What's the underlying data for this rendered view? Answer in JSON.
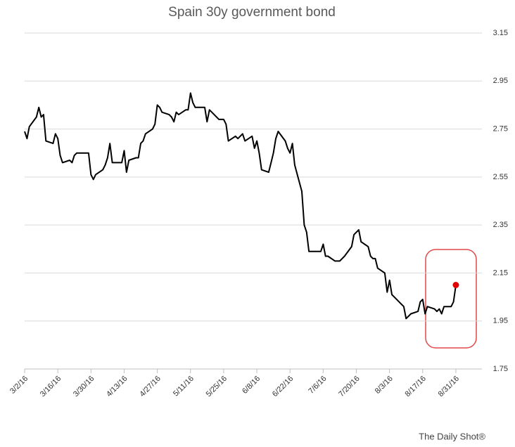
{
  "chart_data": {
    "type": "line",
    "title": "Spain 30y government bond",
    "source": "The Daily Shot®",
    "x": [
      "3/2/16",
      "3/3/16",
      "3/4/16",
      "3/7/16",
      "3/8/16",
      "3/9/16",
      "3/10/16",
      "3/11/16",
      "3/14/16",
      "3/15/16",
      "3/16/16",
      "3/17/16",
      "3/18/16",
      "3/21/16",
      "3/22/16",
      "3/23/16",
      "3/24/16",
      "3/29/16",
      "3/30/16",
      "3/31/16",
      "4/1/16",
      "4/4/16",
      "4/5/16",
      "4/6/16",
      "4/7/16",
      "4/8/16",
      "4/11/16",
      "4/12/16",
      "4/13/16",
      "4/14/16",
      "4/15/16",
      "4/18/16",
      "4/19/16",
      "4/20/16",
      "4/21/16",
      "4/22/16",
      "4/25/16",
      "4/26/16",
      "4/27/16",
      "4/28/16",
      "4/29/16",
      "5/2/16",
      "5/3/16",
      "5/4/16",
      "5/5/16",
      "5/6/16",
      "5/9/16",
      "5/10/16",
      "5/11/16",
      "5/12/16",
      "5/13/16",
      "5/16/16",
      "5/17/16",
      "5/18/16",
      "5/19/16",
      "5/20/16",
      "5/23/16",
      "5/24/16",
      "5/25/16",
      "5/26/16",
      "5/27/16",
      "5/30/16",
      "5/31/16",
      "6/1/16",
      "6/2/16",
      "6/3/16",
      "6/6/16",
      "6/7/16",
      "6/8/16",
      "6/9/16",
      "6/10/16",
      "6/13/16",
      "6/14/16",
      "6/15/16",
      "6/16/16",
      "6/17/16",
      "6/20/16",
      "6/21/16",
      "6/22/16",
      "6/23/16",
      "6/24/16",
      "6/27/16",
      "6/28/16",
      "6/29/16",
      "6/30/16",
      "7/1/16",
      "7/4/16",
      "7/5/16",
      "7/6/16",
      "7/7/16",
      "7/8/16",
      "7/11/16",
      "7/12/16",
      "7/13/16",
      "7/14/16",
      "7/15/16",
      "7/18/16",
      "7/19/16",
      "7/20/16",
      "7/21/16",
      "7/22/16",
      "7/25/16",
      "7/26/16",
      "7/27/16",
      "7/28/16",
      "7/29/16",
      "8/1/16",
      "8/2/16",
      "8/3/16",
      "8/4/16",
      "8/5/16",
      "8/8/16",
      "8/9/16",
      "8/10/16",
      "8/11/16",
      "8/12/16",
      "8/15/16",
      "8/16/16",
      "8/17/16",
      "8/18/16",
      "8/19/16",
      "8/22/16",
      "8/23/16",
      "8/24/16",
      "8/25/16",
      "8/26/16",
      "8/29/16",
      "8/30/16",
      "8/31/16"
    ],
    "values": [
      2.74,
      2.71,
      2.76,
      2.8,
      2.84,
      2.8,
      2.81,
      2.7,
      2.69,
      2.73,
      2.71,
      2.64,
      2.61,
      2.62,
      2.61,
      2.64,
      2.65,
      2.65,
      2.56,
      2.54,
      2.56,
      2.58,
      2.6,
      2.63,
      2.69,
      2.61,
      2.61,
      2.61,
      2.66,
      2.57,
      2.62,
      2.63,
      2.63,
      2.69,
      2.7,
      2.73,
      2.75,
      2.77,
      2.85,
      2.84,
      2.82,
      2.81,
      2.8,
      2.78,
      2.82,
      2.81,
      2.83,
      2.83,
      2.9,
      2.86,
      2.84,
      2.84,
      2.84,
      2.78,
      2.83,
      2.82,
      2.79,
      2.79,
      2.79,
      2.77,
      2.7,
      2.72,
      2.71,
      2.72,
      2.73,
      2.7,
      2.72,
      2.67,
      2.7,
      2.65,
      2.58,
      2.57,
      2.61,
      2.65,
      2.71,
      2.74,
      2.7,
      2.67,
      2.65,
      2.69,
      2.6,
      2.49,
      2.35,
      2.32,
      2.24,
      2.24,
      2.24,
      2.24,
      2.27,
      2.22,
      2.22,
      2.2,
      2.2,
      2.2,
      2.21,
      2.22,
      2.26,
      2.31,
      2.32,
      2.33,
      2.28,
      2.26,
      2.22,
      2.21,
      2.21,
      2.17,
      2.15,
      2.07,
      2.12,
      2.06,
      2.05,
      2.02,
      2.01,
      1.96,
      1.97,
      1.98,
      1.99,
      2.03,
      2.04,
      1.98,
      2.01,
      2.0,
      1.99,
      2.0,
      1.98,
      2.01,
      2.01,
      2.03,
      2.1
    ],
    "color": "#000000",
    "highlight_color": "#e00000",
    "xlim": [
      "3/2/16",
      "9/11/16"
    ],
    "xticks": [
      "3/2/16",
      "3/16/16",
      "3/30/16",
      "4/13/16",
      "4/27/16",
      "5/11/16",
      "5/25/16",
      "6/8/16",
      "6/22/16",
      "7/6/16",
      "7/20/16",
      "8/3/16",
      "8/17/16",
      "8/31/16"
    ],
    "ylim": [
      1.75,
      3.15
    ],
    "yticks": [
      1.75,
      1.95,
      2.15,
      2.35,
      2.55,
      2.75,
      2.95,
      3.15
    ],
    "grid": true
  }
}
